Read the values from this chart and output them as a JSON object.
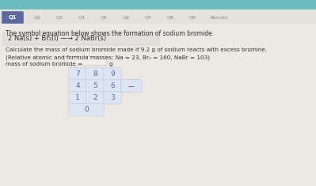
{
  "page_bg": "#ece9e4",
  "top_bar_color": "#6bbcbc",
  "nav_bg": "#e5e2dc",
  "active_tab_color": "#5c6aa0",
  "intro_text": "The symbol equation below shows the formation of sodium bromide.",
  "equation": "2 Na(s) + Br₂(l) —→ 2 NaBr(s)",
  "calc_text_line1": "Calculate the mass of sodium bromide made if 9.2 g of sodium reacts with excess bromine.",
  "calc_text_line2": "(Relative atomic and formula masses: Na = 23, Br₂ = 160, NaBr = 103)",
  "answer_label": "mass of sodium bromide =",
  "answer_unit": "g",
  "nav_tabs": [
    "Q1",
    "Q2",
    "Q3",
    "Q4",
    "Q5",
    "Q6",
    "Q7",
    "Q8",
    "Q9",
    "Results"
  ],
  "active_tab": "Q1",
  "keypad_rows": [
    [
      {
        "label": "7",
        "wide": false
      },
      {
        "label": "8",
        "wide": false
      },
      {
        "label": "9",
        "wide": false
      },
      {
        "label": null,
        "wide": false
      }
    ],
    [
      {
        "label": "4",
        "wide": false
      },
      {
        "label": "5",
        "wide": false
      },
      {
        "label": "6",
        "wide": false
      },
      {
        "label": "−",
        "wide": false
      }
    ],
    [
      {
        "label": "1",
        "wide": false
      },
      {
        "label": "2",
        "wide": false
      },
      {
        "label": "3",
        "wide": false
      },
      {
        "label": null,
        "wide": false
      }
    ],
    [
      {
        "label": "0",
        "wide": true
      },
      {
        "label": null,
        "wide": false
      },
      {
        "label": null,
        "wide": false
      },
      {
        "label": null,
        "wide": false
      }
    ]
  ],
  "button_bg": "#dde5f2",
  "button_text_color": "#5c6aa0",
  "button_border_color": "#bbc4d8",
  "input_box_color": "#f0eeea",
  "text_color": "#333333",
  "eq_box_bg": "#e2e0dc",
  "eq_box_border": "#ccc9c2"
}
